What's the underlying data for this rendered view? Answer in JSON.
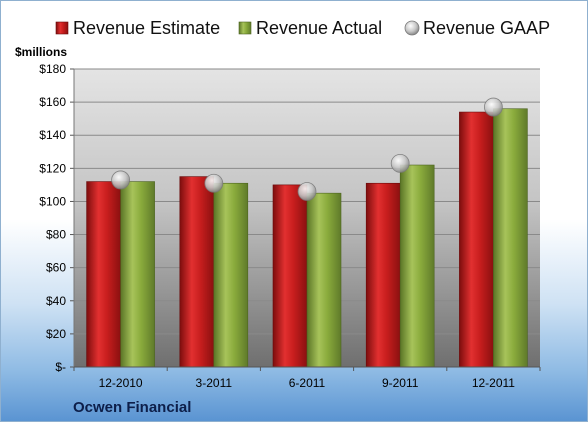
{
  "chart_data": {
    "type": "bar",
    "categories": [
      "12-2010",
      "3-2011",
      "6-2011",
      "9-2011",
      "12-2011"
    ],
    "series": [
      {
        "name": "Revenue Estimate",
        "kind": "bar",
        "color": "#c81e1e",
        "values": [
          112,
          115,
          110,
          111,
          154
        ]
      },
      {
        "name": "Revenue Actual",
        "kind": "bar",
        "color": "#8aab3c",
        "values": [
          112,
          111,
          105,
          122,
          156
        ]
      },
      {
        "name": "Revenue GAAP",
        "kind": "marker",
        "color": "#b8b8b8",
        "values": [
          113,
          111,
          106,
          123,
          157
        ]
      }
    ],
    "ylabel": "$millions",
    "ylim": [
      0,
      180
    ],
    "yticks": [
      0,
      20,
      40,
      60,
      80,
      100,
      120,
      140,
      160,
      180
    ],
    "ytick_labels": [
      "$-",
      "$20",
      "$40",
      "$60",
      "$80",
      "$100",
      "$120",
      "$140",
      "$160",
      "$180"
    ],
    "grid": true,
    "legend_position": "top"
  },
  "footer": {
    "company": "Ocwen Financial"
  }
}
